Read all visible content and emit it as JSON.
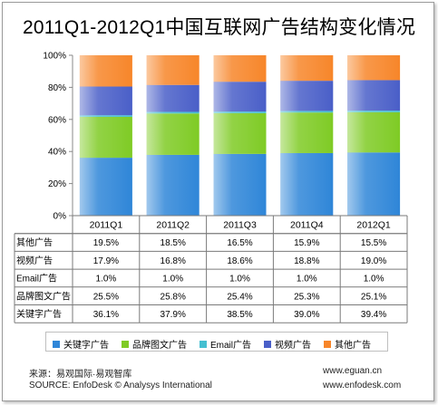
{
  "chart_data": {
    "type": "bar",
    "stacked": true,
    "title": "2011Q1-2012Q1中国互联网广告结构变化情况",
    "categories": [
      "2011Q1",
      "2011Q2",
      "2011Q3",
      "2011Q4",
      "2012Q1"
    ],
    "ylim": [
      0,
      100
    ],
    "yticks": [
      "0%",
      "20%",
      "40%",
      "60%",
      "80%",
      "100%"
    ],
    "series": [
      {
        "name": "关键字广告",
        "values": [
          36.1,
          37.9,
          38.5,
          39.0,
          39.4
        ],
        "labels": [
          "36.1%",
          "37.9%",
          "38.5%",
          "39.0%",
          "39.4%"
        ],
        "color": "#2f86d8"
      },
      {
        "name": "品牌图文广告",
        "values": [
          25.5,
          25.8,
          25.4,
          25.3,
          25.1
        ],
        "labels": [
          "25.5%",
          "25.8%",
          "25.4%",
          "25.3%",
          "25.1%"
        ],
        "color": "#7fcb25"
      },
      {
        "name": "Email广告",
        "values": [
          1.0,
          1.0,
          1.0,
          1.0,
          1.0
        ],
        "labels": [
          "1.0%",
          "1.0%",
          "1.0%",
          "1.0%",
          "1.0%"
        ],
        "color": "#45bfd1"
      },
      {
        "name": "视频广告",
        "values": [
          17.9,
          16.8,
          18.6,
          18.8,
          19.0
        ],
        "labels": [
          "17.9%",
          "16.8%",
          "18.6%",
          "18.8%",
          "19.0%"
        ],
        "color": "#4a5fc8"
      },
      {
        "name": "其他广告",
        "values": [
          19.5,
          18.5,
          16.5,
          15.9,
          15.5
        ],
        "labels": [
          "19.5%",
          "18.5%",
          "16.5%",
          "15.9%",
          "15.5%"
        ],
        "color": "#f7862a"
      }
    ],
    "table_row_order": [
      "其他广告",
      "视频广告",
      "Email广告",
      "品牌图文广告",
      "关键字广告"
    ],
    "grid": false,
    "legend_placement": "bottom"
  },
  "footer": {
    "source_cn": "来源：易观国际·易观智库",
    "source_en": "SOURCE: EnfoDesk © Analysys International",
    "url1": "www.eguan.cn",
    "url2": "www.enfodesk.com"
  }
}
